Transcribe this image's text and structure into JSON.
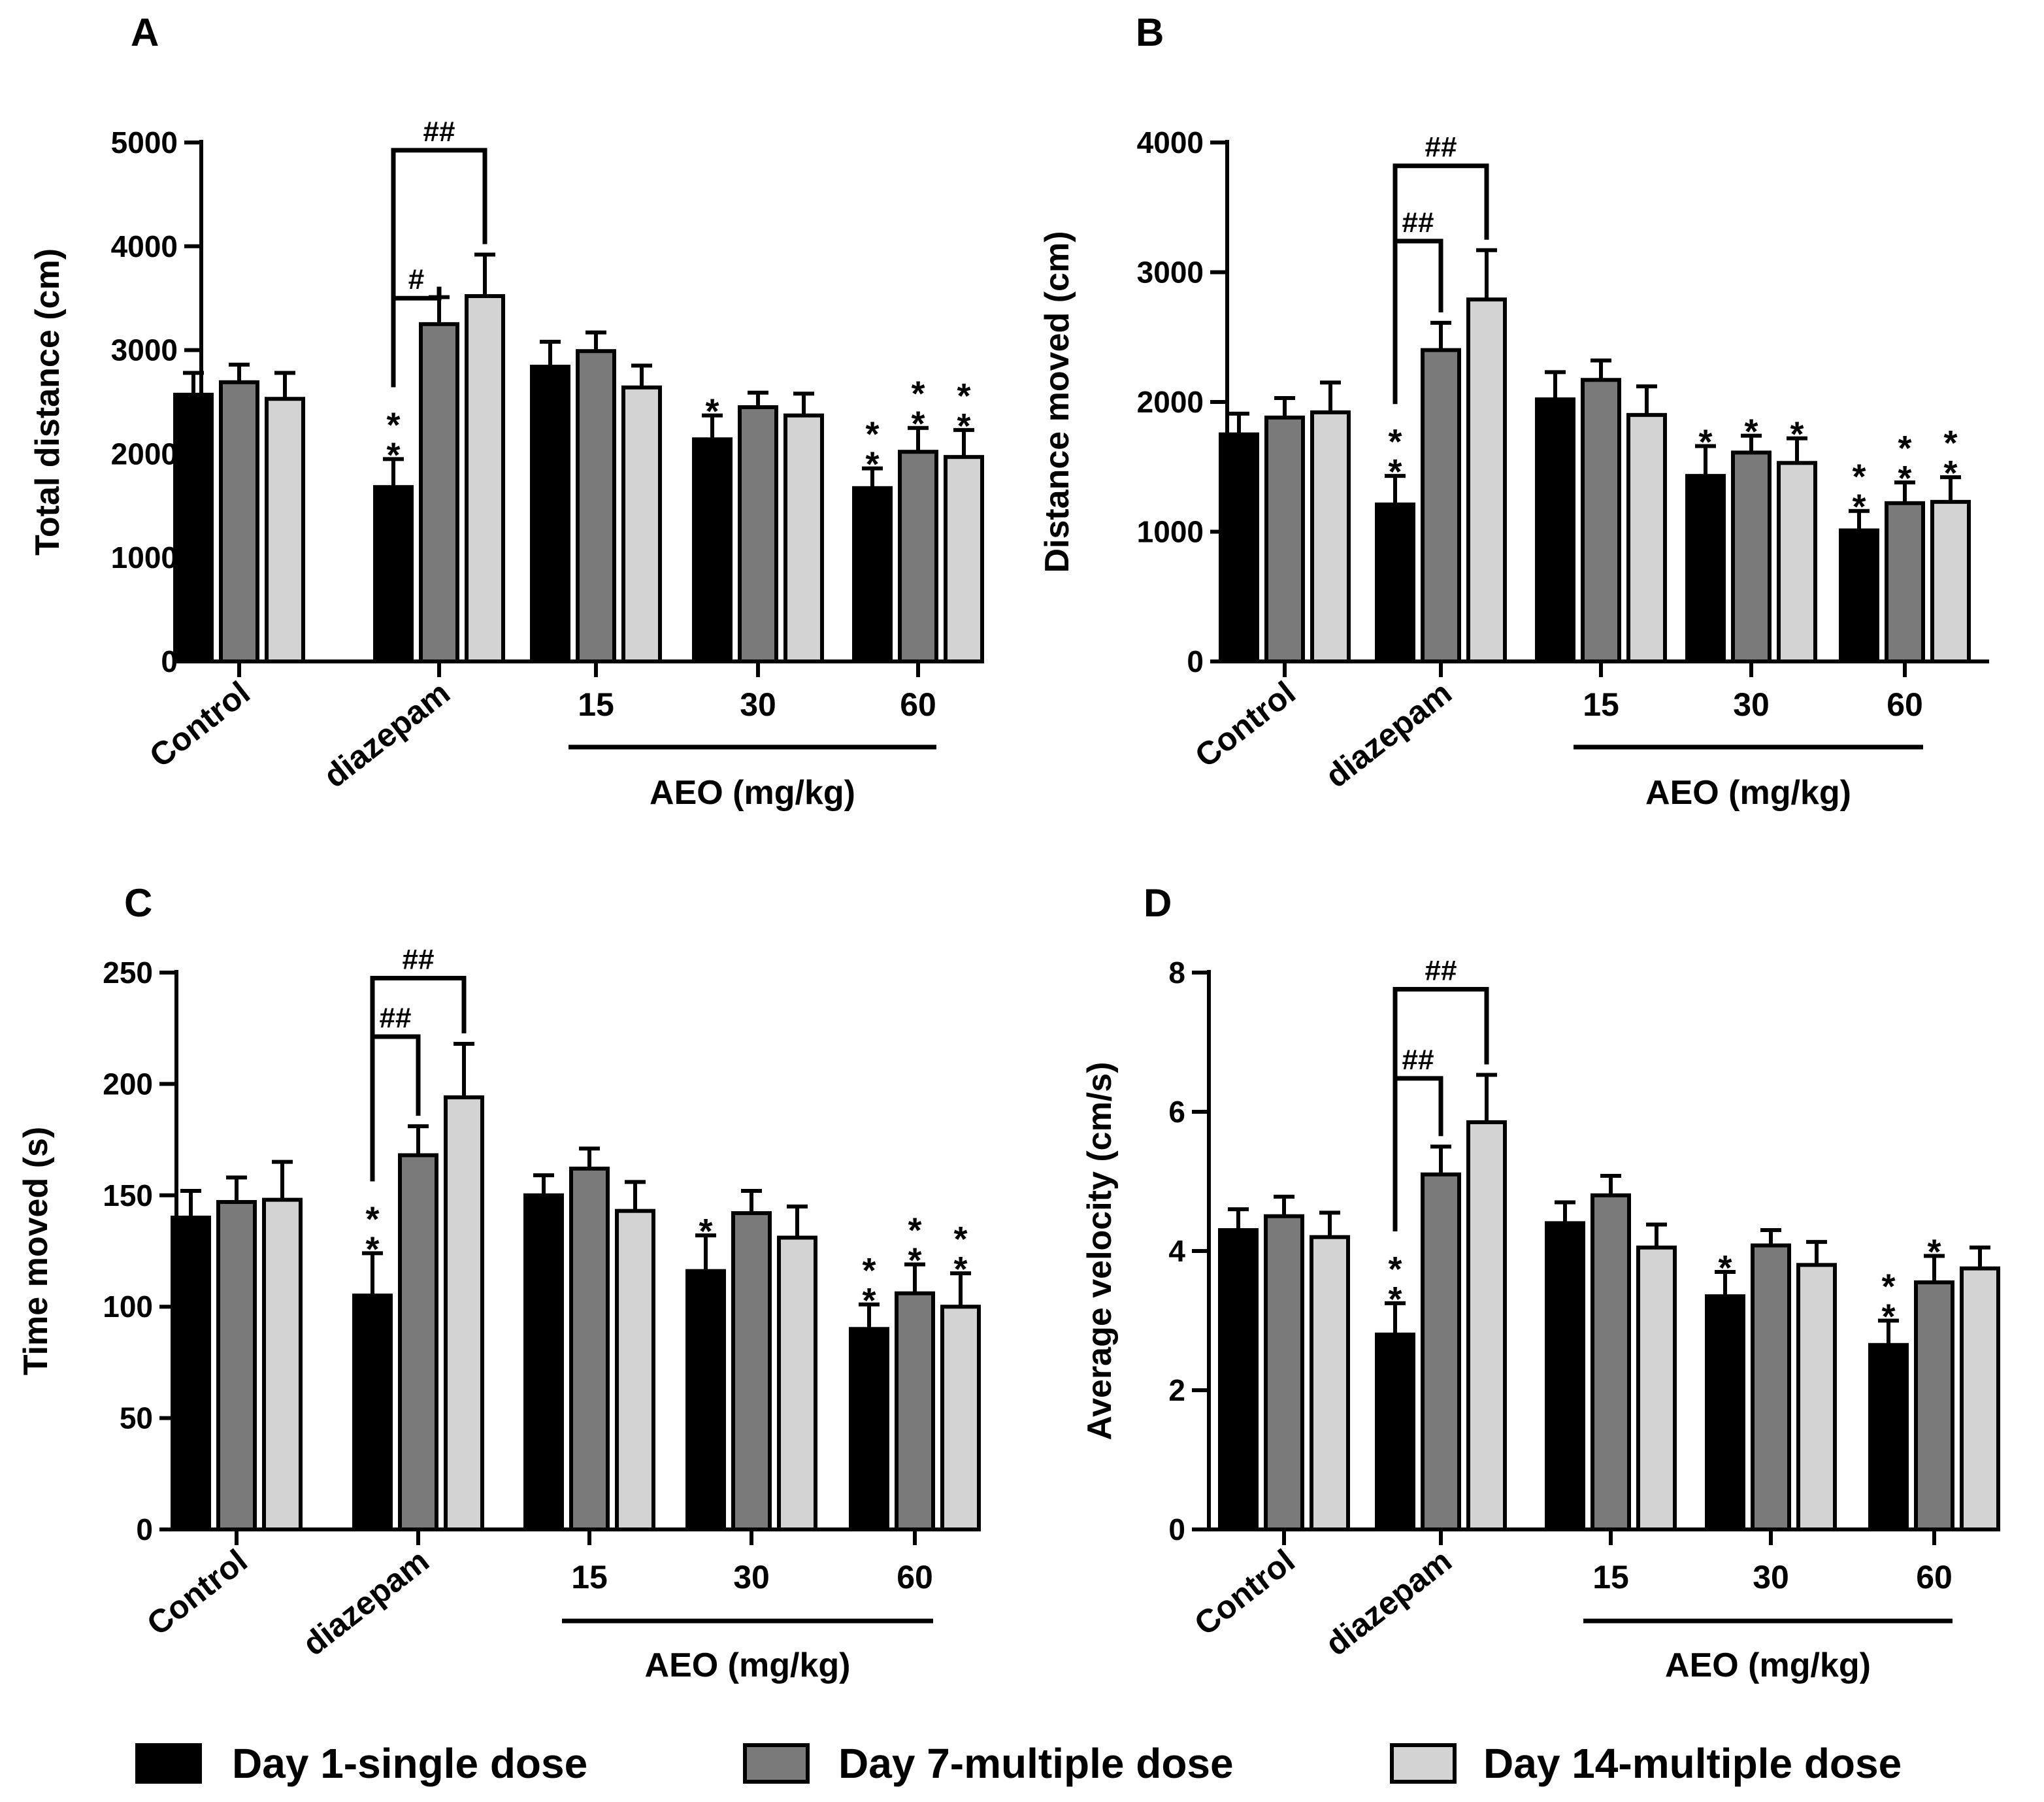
{
  "chart_data": [
    {
      "type": "bar",
      "panel": "A",
      "ylabel": "Total distance (cm)",
      "ylim": [
        0,
        5000
      ],
      "yticks": [
        "0",
        "1000",
        "2000",
        "3000",
        "4000",
        "5000"
      ],
      "categories": [
        "Control",
        "diazepam",
        "15",
        "30",
        "60"
      ],
      "group_title": "AEO (mg/kg)",
      "series": [
        {
          "name": "Day 1-single dose",
          "values": [
            2570,
            1680,
            2840,
            2140,
            1670
          ],
          "errors": [
            210,
            270,
            240,
            230,
            190
          ]
        },
        {
          "name": "Day 7-multiple dose",
          "values": [
            2690,
            3250,
            2990,
            2450,
            2020
          ],
          "errors": [
            170,
            260,
            180,
            140,
            230
          ]
        },
        {
          "name": "Day 14-multiple dose",
          "values": [
            2530,
            3520,
            2640,
            2370,
            1970
          ],
          "errors": [
            250,
            400,
            210,
            210,
            260
          ]
        }
      ],
      "annotations": [
        {
          "group": 1,
          "series": 0,
          "text": "*\n*"
        },
        {
          "group": 3,
          "series": 0,
          "text": "*"
        },
        {
          "group": 4,
          "series": 0,
          "text": "*\n*"
        },
        {
          "group": 4,
          "series": 1,
          "text": "*\n*"
        },
        {
          "group": 4,
          "series": 2,
          "text": "*\n*"
        }
      ],
      "brackets": [
        {
          "group": 1,
          "to_series": 1,
          "text": "#"
        },
        {
          "group": 1,
          "to_series": 2,
          "text": "##"
        }
      ]
    },
    {
      "type": "bar",
      "panel": "B",
      "ylabel": "Distance moved (cm)",
      "ylim": [
        0,
        4000
      ],
      "yticks": [
        "0",
        "1000",
        "2000",
        "3000",
        "4000"
      ],
      "categories": [
        "Control",
        "diazepam",
        "15",
        "30",
        "60"
      ],
      "group_title": "AEO (mg/kg)",
      "series": [
        {
          "name": "Day 1-single dose",
          "values": [
            1750,
            1210,
            2020,
            1430,
            1010
          ],
          "errors": [
            160,
            220,
            210,
            230,
            150
          ]
        },
        {
          "name": "Day 7-multiple dose",
          "values": [
            1880,
            2400,
            2170,
            1610,
            1220
          ],
          "errors": [
            150,
            210,
            150,
            130,
            160
          ]
        },
        {
          "name": "Day 14-multiple dose",
          "values": [
            1920,
            2790,
            1900,
            1530,
            1230
          ],
          "errors": [
            230,
            380,
            220,
            190,
            190
          ]
        }
      ],
      "annotations": [
        {
          "group": 1,
          "series": 0,
          "text": "*\n*"
        },
        {
          "group": 3,
          "series": 0,
          "text": "*"
        },
        {
          "group": 3,
          "series": 1,
          "text": "*"
        },
        {
          "group": 3,
          "series": 2,
          "text": "*"
        },
        {
          "group": 4,
          "series": 0,
          "text": "*\n*"
        },
        {
          "group": 4,
          "series": 1,
          "text": "*\n*"
        },
        {
          "group": 4,
          "series": 2,
          "text": "*\n*"
        }
      ],
      "brackets": [
        {
          "group": 1,
          "to_series": 1,
          "text": "##"
        },
        {
          "group": 1,
          "to_series": 2,
          "text": "##"
        }
      ]
    },
    {
      "type": "bar",
      "panel": "C",
      "ylabel": "Time moved (s)",
      "ylim": [
        0,
        250
      ],
      "yticks": [
        "0",
        "50",
        "100",
        "150",
        "200",
        "250"
      ],
      "categories": [
        "Control",
        "diazepam",
        "15",
        "30",
        "60"
      ],
      "group_title": "AEO (mg/kg)",
      "series": [
        {
          "name": "Day 1-single dose",
          "values": [
            140,
            105,
            150,
            116,
            90
          ],
          "errors": [
            12,
            19,
            9,
            16,
            11
          ]
        },
        {
          "name": "Day 7-multiple dose",
          "values": [
            147,
            168,
            162,
            142,
            106
          ],
          "errors": [
            11,
            13,
            9,
            10,
            13
          ]
        },
        {
          "name": "Day 14-multiple dose",
          "values": [
            148,
            194,
            143,
            131,
            100
          ],
          "errors": [
            17,
            24,
            13,
            14,
            15
          ]
        }
      ],
      "annotations": [
        {
          "group": 1,
          "series": 0,
          "text": "*\n*"
        },
        {
          "group": 3,
          "series": 0,
          "text": "*"
        },
        {
          "group": 4,
          "series": 0,
          "text": "*\n*"
        },
        {
          "group": 4,
          "series": 1,
          "text": "*\n*"
        },
        {
          "group": 4,
          "series": 2,
          "text": "*\n*"
        }
      ],
      "brackets": [
        {
          "group": 1,
          "to_series": 1,
          "text": "##"
        },
        {
          "group": 1,
          "to_series": 2,
          "text": "##"
        }
      ]
    },
    {
      "type": "bar",
      "panel": "D",
      "ylabel": "Average velocity (cm/s)",
      "ylim": [
        0,
        8
      ],
      "yticks": [
        "0",
        "2",
        "4",
        "6",
        "8"
      ],
      "categories": [
        "Control",
        "diazepam",
        "15",
        "30",
        "60"
      ],
      "group_title": "AEO (mg/kg)",
      "series": [
        {
          "name": "Day 1-single dose",
          "values": [
            4.3,
            2.8,
            4.4,
            3.35,
            2.65
          ],
          "errors": [
            0.3,
            0.45,
            0.3,
            0.35,
            0.35
          ]
        },
        {
          "name": "Day 7-multiple dose",
          "values": [
            4.5,
            5.1,
            4.8,
            4.08,
            3.55
          ],
          "errors": [
            0.28,
            0.4,
            0.28,
            0.22,
            0.38
          ]
        },
        {
          "name": "Day 14-multiple dose",
          "values": [
            4.2,
            5.85,
            4.05,
            3.8,
            3.75
          ],
          "errors": [
            0.35,
            0.68,
            0.33,
            0.33,
            0.3
          ]
        }
      ],
      "annotations": [
        {
          "group": 1,
          "series": 0,
          "text": "*\n*"
        },
        {
          "group": 3,
          "series": 0,
          "text": "*"
        },
        {
          "group": 4,
          "series": 0,
          "text": "*\n*"
        },
        {
          "group": 4,
          "series": 1,
          "text": "*"
        }
      ],
      "brackets": [
        {
          "group": 1,
          "to_series": 1,
          "text": "##"
        },
        {
          "group": 1,
          "to_series": 2,
          "text": "##"
        }
      ]
    }
  ],
  "legend": [
    {
      "label": "Day 1-single dose",
      "color": "#000000"
    },
    {
      "label": "Day 7-multiple dose",
      "color": "#7a7a7a"
    },
    {
      "label": "Day 14-multiple dose",
      "color": "#d3d3d3"
    }
  ]
}
